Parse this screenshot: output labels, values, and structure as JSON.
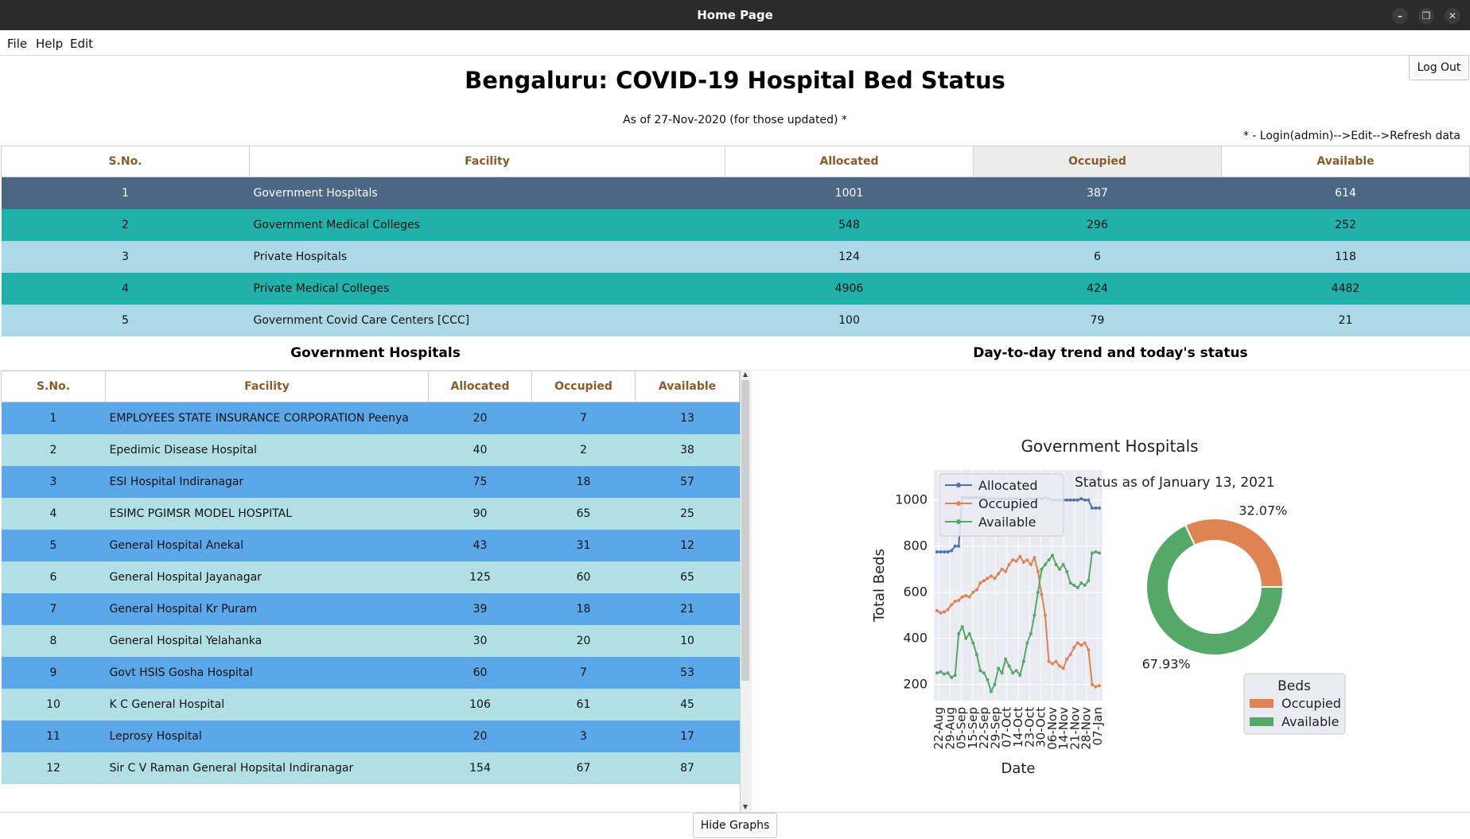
{
  "window": {
    "title": "Home Page"
  },
  "menu": {
    "file": "File",
    "help": "Help",
    "edit": "Edit"
  },
  "header": {
    "title": "Bengaluru: COVID-19 Hospital Bed Status",
    "as_of": "As of 27-Nov-2020 (for those updated) *",
    "note": "* - Login(admin)-->Edit-->Refresh data",
    "logout_label": "Log Out"
  },
  "main_table": {
    "columns": [
      "S.No.",
      "Facility",
      "Allocated",
      "Occupied",
      "Available"
    ],
    "rows": [
      [
        "1",
        "Government Hospitals",
        "1001",
        "387",
        "614"
      ],
      [
        "2",
        "Government Medical Colleges",
        "548",
        "296",
        "252"
      ],
      [
        "3",
        "Private Hospitals",
        "124",
        "6",
        "118"
      ],
      [
        "4",
        "Private Medical Colleges",
        "4906",
        "424",
        "4482"
      ],
      [
        "5",
        "Government Covid Care Centers [CCC]",
        "100",
        "79",
        "21"
      ]
    ]
  },
  "gov_section": {
    "title": "Government Hospitals",
    "columns": [
      "S.No.",
      "Facility",
      "Allocated",
      "Occupied",
      "Available"
    ],
    "rows": [
      [
        "1",
        "EMPLOYEES STATE INSURANCE CORPORATION Peenya",
        "20",
        "7",
        "13"
      ],
      [
        "2",
        "Epedimic Disease Hospital",
        "40",
        "2",
        "38"
      ],
      [
        "3",
        "ESI Hospital Indiranagar",
        "75",
        "18",
        "57"
      ],
      [
        "4",
        "ESIMC PGIMSR MODEL HOSPITAL",
        "90",
        "65",
        "25"
      ],
      [
        "5",
        "General Hospital Anekal",
        "43",
        "31",
        "12"
      ],
      [
        "6",
        "General Hospital Jayanagar",
        "125",
        "60",
        "65"
      ],
      [
        "7",
        "General Hospital Kr Puram",
        "39",
        "18",
        "21"
      ],
      [
        "8",
        "General Hospital Yelahanka",
        "30",
        "20",
        "10"
      ],
      [
        "9",
        "Govt HSIS Gosha Hospital",
        "60",
        "7",
        "53"
      ],
      [
        "10",
        "K C General Hospital",
        "106",
        "61",
        "45"
      ],
      [
        "11",
        "Leprosy Hospital",
        "20",
        "3",
        "17"
      ],
      [
        "12",
        "Sir C V Raman General Hopsital Indiranagar",
        "154",
        "67",
        "87"
      ]
    ]
  },
  "trend_section": {
    "title": "Day-to-day trend and today's status"
  },
  "buttons": {
    "hide_graphs": "Hide Graphs"
  },
  "colors": {
    "allocated": "#4c72b0",
    "occupied": "#dd8452",
    "available": "#55a868"
  },
  "chart_data": [
    {
      "type": "line",
      "title": "Government Hospitals",
      "xlabel": "Date",
      "ylabel": "Total Beds",
      "ylim": [
        130,
        1130
      ],
      "yticks": [
        200,
        400,
        600,
        800,
        1000
      ],
      "x_tick_labels": [
        "22-Aug",
        "29-Aug",
        "05-Sep",
        "15-Sep",
        "22-Sep",
        "29-Sep",
        "07-Oct",
        "14-Oct",
        "23-Oct",
        "30-Oct",
        "06-Nov",
        "14-Nov",
        "21-Nov",
        "28-Nov",
        "07-Jan"
      ],
      "legend": [
        "Allocated",
        "Occupied",
        "Available"
      ],
      "series": [
        {
          "name": "Allocated",
          "values": [
            775,
            775,
            775,
            775,
            780,
            800,
            800,
            1010,
            1010,
            1010,
            1010,
            1010,
            1010,
            1010,
            1005,
            1005,
            1005,
            1005,
            1005,
            1005,
            1005,
            1005,
            1005,
            1005,
            1000,
            1005,
            1005,
            1005,
            1005,
            1005,
            1010,
            1005,
            1000,
            1000,
            1000,
            1000,
            1000,
            1000,
            1000,
            1000,
            1005,
            1000,
            1000,
            965,
            965,
            965
          ]
        },
        {
          "name": "Occupied",
          "values": [
            520,
            510,
            515,
            525,
            545,
            560,
            565,
            580,
            585,
            580,
            600,
            610,
            640,
            650,
            660,
            670,
            660,
            680,
            700,
            690,
            720,
            740,
            735,
            755,
            730,
            740,
            720,
            750,
            690,
            590,
            500,
            300,
            290,
            300,
            280,
            270,
            310,
            330,
            360,
            380,
            370,
            380,
            350,
            200,
            190,
            195
          ]
        },
        {
          "name": "Available",
          "values": [
            250,
            255,
            245,
            250,
            230,
            240,
            420,
            450,
            400,
            420,
            380,
            330,
            260,
            250,
            220,
            170,
            200,
            270,
            250,
            310,
            280,
            250,
            260,
            240,
            300,
            380,
            420,
            500,
            600,
            700,
            720,
            740,
            760,
            720,
            700,
            720,
            690,
            640,
            630,
            620,
            640,
            630,
            650,
            770,
            775,
            770
          ]
        }
      ]
    },
    {
      "type": "pie",
      "title": "Status as of January 13, 2021",
      "legend_title": "Beds",
      "labels": [
        "Occupied",
        "Available"
      ],
      "values": [
        32.07,
        67.93
      ],
      "value_labels": [
        "32.07%",
        "67.93%"
      ]
    }
  ]
}
